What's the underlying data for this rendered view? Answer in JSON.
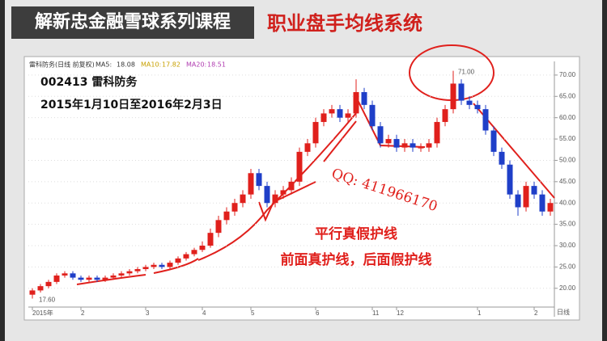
{
  "header": {
    "series_title": "解新忠金融雪球系列课程",
    "topic": "职业盘手均线系统"
  },
  "chart_data": {
    "type": "candlestick",
    "legend_title": "雷科防务(日线 前复权)",
    "legend": [
      {
        "name": "MA5:",
        "value": 18.08
      },
      {
        "name": "MA10:",
        "value": 17.82
      },
      {
        "name": "MA20:",
        "value": 18.51
      }
    ],
    "stock": "002413 雷科防务",
    "period": "2015年1月10日至2016年2月3日",
    "period_label": "日线",
    "annotations": [
      "QQ: 411966170",
      "平行真假护线",
      "前面真护线，后面假护线"
    ],
    "high_label": {
      "value": 71,
      "label": "71.00"
    },
    "low_label": {
      "value": 17.6,
      "label": "17.60"
    },
    "categories": [
      "2015年",
      null,
      null,
      null,
      null,
      null,
      "2",
      null,
      null,
      null,
      null,
      null,
      null,
      null,
      "3",
      null,
      null,
      null,
      null,
      null,
      null,
      "4",
      null,
      null,
      null,
      null,
      null,
      "5",
      null,
      null,
      null,
      null,
      null,
      null,
      null,
      "6",
      null,
      null,
      null,
      null,
      null,
      null,
      "11",
      null,
      null,
      "12",
      null,
      null,
      null,
      null,
      null,
      null,
      null,
      null,
      null,
      "1",
      null,
      null,
      null,
      null,
      null,
      null,
      "2",
      null,
      null
    ],
    "open": [
      18.5,
      19.5,
      20.5,
      21.5,
      23,
      23.5,
      22.5,
      22,
      22.5,
      22,
      22.5,
      23,
      23.5,
      24,
      24.5,
      25,
      25.5,
      25,
      26,
      27,
      28,
      29,
      30,
      33,
      36,
      38,
      40,
      42,
      47,
      44,
      40,
      42,
      43,
      45,
      52,
      54,
      59,
      61,
      62,
      60,
      61,
      66,
      63,
      58,
      54,
      55,
      53,
      54,
      53,
      53,
      54,
      59,
      62,
      68,
      64,
      63,
      62,
      57,
      52,
      49,
      42,
      39,
      44,
      42,
      38
    ],
    "close": [
      19.5,
      20.5,
      21.5,
      23,
      23.5,
      22.5,
      22,
      22.5,
      22,
      22.5,
      23,
      23.5,
      24,
      24.5,
      25,
      25.5,
      25,
      26,
      27,
      28,
      29,
      30,
      33,
      36,
      38,
      40,
      42,
      47,
      44,
      40,
      42,
      43,
      45,
      52,
      54,
      59,
      61,
      62,
      60,
      61,
      66,
      63,
      58,
      54,
      55,
      53,
      54,
      53,
      53,
      54,
      59,
      62,
      68,
      64,
      63,
      62,
      57,
      52,
      49,
      42,
      39,
      44,
      42,
      38,
      40
    ],
    "high": [
      20,
      21,
      22,
      23.5,
      24,
      24,
      23,
      23,
      23,
      23,
      23.5,
      24,
      24.5,
      25,
      25.5,
      26,
      26,
      26.5,
      27.5,
      28.5,
      29.5,
      31,
      34,
      37,
      39,
      41,
      43,
      48,
      48,
      45,
      43,
      44,
      46,
      53,
      55,
      60,
      62,
      63,
      63,
      62,
      69,
      67,
      64,
      59,
      56,
      56,
      55,
      55,
      54,
      55,
      60,
      63,
      71,
      69,
      65,
      64,
      63,
      58,
      53,
      50,
      43,
      45,
      45,
      43,
      41
    ],
    "low": [
      17.6,
      19,
      20,
      21,
      22.5,
      22,
      21.5,
      21.5,
      21.5,
      21.5,
      22,
      22.5,
      23,
      23.5,
      24,
      24.5,
      24.5,
      24.5,
      25.5,
      26.5,
      27.5,
      28.5,
      29.5,
      32,
      35,
      37,
      39,
      41,
      43,
      39,
      39,
      41,
      42,
      44,
      51,
      53,
      58,
      60,
      59,
      59,
      60,
      62,
      57,
      53,
      53,
      52,
      52,
      52,
      52,
      52,
      53,
      58,
      61,
      63,
      62,
      61,
      56,
      51,
      48,
      41,
      37,
      38,
      41,
      37,
      37
    ],
    "ylim": [
      15.6,
      73.2
    ],
    "yticks": [
      {
        "value": 20,
        "label": "20.00"
      },
      {
        "value": 25,
        "label": "25.00"
      },
      {
        "value": 30,
        "label": "30.00"
      },
      {
        "value": 35,
        "label": "35.00"
      },
      {
        "value": 40,
        "label": "40.00"
      },
      {
        "value": 45,
        "label": "45.00"
      },
      {
        "value": 50,
        "label": "50.00"
      },
      {
        "value": 55,
        "label": "55.00"
      },
      {
        "value": 60,
        "label": "60.00"
      },
      {
        "value": 65,
        "label": "65.00"
      },
      {
        "value": 70,
        "label": "70.00"
      }
    ],
    "grid": true,
    "up_color": "#e0201c",
    "down_color": "#1f3fc8"
  }
}
